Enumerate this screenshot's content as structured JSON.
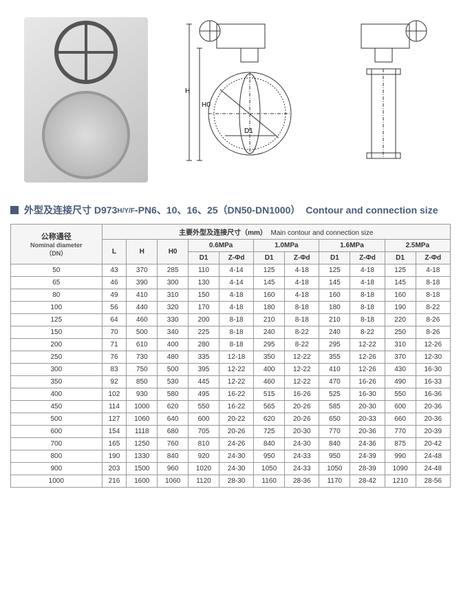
{
  "title": {
    "cn": "外型及连接尺寸 D973",
    "model": "H/Y/F",
    "spec": "-PN6、10、16、25（DN50-DN1000）",
    "en": "Contour and connection size"
  },
  "tableHeader": {
    "mainCn": "主要外型及连接尺寸（mm）",
    "mainEn": "Main contour and connection size",
    "dnCn": "公称通径",
    "dnEn": "Nominal diameter",
    "dnUnit": "（DN）",
    "L": "L",
    "H": "H",
    "H0": "H0",
    "p06": "0.6MPa",
    "p10": "1.0MPa",
    "p16": "1.6MPa",
    "p25": "2.5MPa",
    "D1": "D1",
    "Zd": "Z-Φd"
  },
  "diagram": {
    "H": "H",
    "H0": "H0",
    "D1": "D1"
  },
  "rows": [
    {
      "dn": "50",
      "L": "43",
      "H": "370",
      "H0": "285",
      "p06d1": "110",
      "p06zd": "4-14",
      "p10d1": "125",
      "p10zd": "4-18",
      "p16d1": "125",
      "p16zd": "4-18",
      "p25d1": "125",
      "p25zd": "4-18"
    },
    {
      "dn": "65",
      "L": "46",
      "H": "390",
      "H0": "300",
      "p06d1": "130",
      "p06zd": "4-14",
      "p10d1": "145",
      "p10zd": "4-18",
      "p16d1": "145",
      "p16zd": "4-18",
      "p25d1": "145",
      "p25zd": "8-18"
    },
    {
      "dn": "80",
      "L": "49",
      "H": "410",
      "H0": "310",
      "p06d1": "150",
      "p06zd": "4-18",
      "p10d1": "160",
      "p10zd": "4-18",
      "p16d1": "160",
      "p16zd": "8-18",
      "p25d1": "160",
      "p25zd": "8-18"
    },
    {
      "dn": "100",
      "L": "56",
      "H": "440",
      "H0": "320",
      "p06d1": "170",
      "p06zd": "4-18",
      "p10d1": "180",
      "p10zd": "8-18",
      "p16d1": "180",
      "p16zd": "8-18",
      "p25d1": "190",
      "p25zd": "8-22"
    },
    {
      "dn": "125",
      "L": "64",
      "H": "460",
      "H0": "330",
      "p06d1": "200",
      "p06zd": "8-18",
      "p10d1": "210",
      "p10zd": "8-18",
      "p16d1": "210",
      "p16zd": "8-18",
      "p25d1": "220",
      "p25zd": "8-26"
    },
    {
      "dn": "150",
      "L": "70",
      "H": "500",
      "H0": "340",
      "p06d1": "225",
      "p06zd": "8-18",
      "p10d1": "240",
      "p10zd": "8-22",
      "p16d1": "240",
      "p16zd": "8-22",
      "p25d1": "250",
      "p25zd": "8-26"
    },
    {
      "dn": "200",
      "L": "71",
      "H": "610",
      "H0": "400",
      "p06d1": "280",
      "p06zd": "8-18",
      "p10d1": "295",
      "p10zd": "8-22",
      "p16d1": "295",
      "p16zd": "12-22",
      "p25d1": "310",
      "p25zd": "12-26"
    },
    {
      "dn": "250",
      "L": "76",
      "H": "730",
      "H0": "480",
      "p06d1": "335",
      "p06zd": "12-18",
      "p10d1": "350",
      "p10zd": "12-22",
      "p16d1": "355",
      "p16zd": "12-26",
      "p25d1": "370",
      "p25zd": "12-30"
    },
    {
      "dn": "300",
      "L": "83",
      "H": "750",
      "H0": "500",
      "p06d1": "395",
      "p06zd": "12-22",
      "p10d1": "400",
      "p10zd": "12-22",
      "p16d1": "410",
      "p16zd": "12-26",
      "p25d1": "430",
      "p25zd": "16-30"
    },
    {
      "dn": "350",
      "L": "92",
      "H": "850",
      "H0": "530",
      "p06d1": "445",
      "p06zd": "12-22",
      "p10d1": "460",
      "p10zd": "12-22",
      "p16d1": "470",
      "p16zd": "16-26",
      "p25d1": "490",
      "p25zd": "16-33"
    },
    {
      "dn": "400",
      "L": "102",
      "H": "930",
      "H0": "580",
      "p06d1": "495",
      "p06zd": "16-22",
      "p10d1": "515",
      "p10zd": "16-26",
      "p16d1": "525",
      "p16zd": "16-30",
      "p25d1": "550",
      "p25zd": "16-36"
    },
    {
      "dn": "450",
      "L": "114",
      "H": "1000",
      "H0": "620",
      "p06d1": "550",
      "p06zd": "16-22",
      "p10d1": "565",
      "p10zd": "20-26",
      "p16d1": "585",
      "p16zd": "20-30",
      "p25d1": "600",
      "p25zd": "20-36"
    },
    {
      "dn": "500",
      "L": "127",
      "H": "1060",
      "H0": "640",
      "p06d1": "600",
      "p06zd": "20-22",
      "p10d1": "620",
      "p10zd": "20-26",
      "p16d1": "650",
      "p16zd": "20-33",
      "p25d1": "660",
      "p25zd": "20-36"
    },
    {
      "dn": "600",
      "L": "154",
      "H": "1118",
      "H0": "680",
      "p06d1": "705",
      "p06zd": "20-26",
      "p10d1": "725",
      "p10zd": "20-30",
      "p16d1": "770",
      "p16zd": "20-36",
      "p25d1": "770",
      "p25zd": "20-39"
    },
    {
      "dn": "700",
      "L": "165",
      "H": "1250",
      "H0": "760",
      "p06d1": "810",
      "p06zd": "24-26",
      "p10d1": "840",
      "p10zd": "24-30",
      "p16d1": "840",
      "p16zd": "24-36",
      "p25d1": "875",
      "p25zd": "20-42"
    },
    {
      "dn": "800",
      "L": "190",
      "H": "1330",
      "H0": "840",
      "p06d1": "920",
      "p06zd": "24-30",
      "p10d1": "950",
      "p10zd": "24-33",
      "p16d1": "950",
      "p16zd": "24-39",
      "p25d1": "990",
      "p25zd": "24-48"
    },
    {
      "dn": "900",
      "L": "203",
      "H": "1500",
      "H0": "960",
      "p06d1": "1020",
      "p06zd": "24-30",
      "p10d1": "1050",
      "p10zd": "24-33",
      "p16d1": "1050",
      "p16zd": "28-39",
      "p25d1": "1090",
      "p25zd": "24-48"
    },
    {
      "dn": "1000",
      "L": "216",
      "H": "1600",
      "H0": "1060",
      "p06d1": "1120",
      "p06zd": "28-30",
      "p10d1": "1160",
      "p10zd": "28-36",
      "p16d1": "1170",
      "p16zd": "28-42",
      "p25d1": "1210",
      "p25zd": "28-56"
    }
  ]
}
